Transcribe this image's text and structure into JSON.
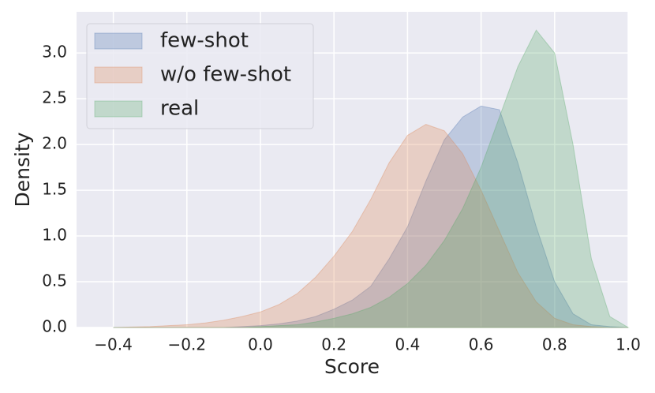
{
  "chart_data": {
    "type": "area",
    "xlabel": "Score",
    "ylabel": "Density",
    "x": [
      -0.4,
      -0.35,
      -0.3,
      -0.25,
      -0.2,
      -0.15,
      -0.1,
      -0.05,
      0,
      0.05,
      0.1,
      0.15,
      0.2,
      0.25,
      0.3,
      0.35,
      0.4,
      0.45,
      0.5,
      0.55,
      0.6,
      0.65,
      0.7,
      0.75,
      0.8,
      0.85,
      0.9,
      0.95,
      1.0
    ],
    "series": [
      {
        "name": "few-shot",
        "color": "#4c72b0",
        "values": [
          0,
          0,
          0,
          0,
          0,
          0,
          0,
          0.01,
          0.02,
          0.04,
          0.07,
          0.12,
          0.2,
          0.3,
          0.45,
          0.75,
          1.1,
          1.6,
          2.05,
          2.3,
          2.42,
          2.38,
          1.8,
          1.1,
          0.5,
          0.15,
          0.03,
          0.01,
          0
        ]
      },
      {
        "name": "w/o few-shot",
        "color": "#dd8452",
        "values": [
          0,
          0.005,
          0.01,
          0.02,
          0.03,
          0.05,
          0.08,
          0.12,
          0.17,
          0.25,
          0.37,
          0.55,
          0.78,
          1.05,
          1.4,
          1.8,
          2.1,
          2.22,
          2.15,
          1.9,
          1.5,
          1.05,
          0.6,
          0.28,
          0.1,
          0.03,
          0.01,
          0,
          0
        ]
      },
      {
        "name": "real",
        "color": "#55a868",
        "values": [
          0,
          0,
          0,
          0,
          0,
          0,
          0,
          0,
          0.01,
          0.02,
          0.03,
          0.06,
          0.1,
          0.15,
          0.22,
          0.33,
          0.48,
          0.68,
          0.95,
          1.3,
          1.75,
          2.3,
          2.85,
          3.25,
          3.0,
          2.0,
          0.75,
          0.12,
          0
        ]
      }
    ],
    "xlim": [
      -0.5,
      1.0
    ],
    "xticks": [
      {
        "value": -0.4,
        "label": "−0.4"
      },
      {
        "value": -0.2,
        "label": "−0.2"
      },
      {
        "value": 0.0,
        "label": "0.0"
      },
      0.2,
      0.4,
      0.6,
      0.8,
      {
        "value": 1.0,
        "label": "1.0"
      }
    ],
    "ylim": [
      0,
      3.45
    ],
    "yticks": [
      {
        "value": 0,
        "label": "0.0"
      },
      0.5,
      {
        "value": 1,
        "label": "1.0"
      },
      1.5,
      {
        "value": 2,
        "label": "2.0"
      },
      2.5,
      {
        "value": 3,
        "label": "3.0"
      }
    ],
    "grid": true,
    "legend": "upper left"
  }
}
